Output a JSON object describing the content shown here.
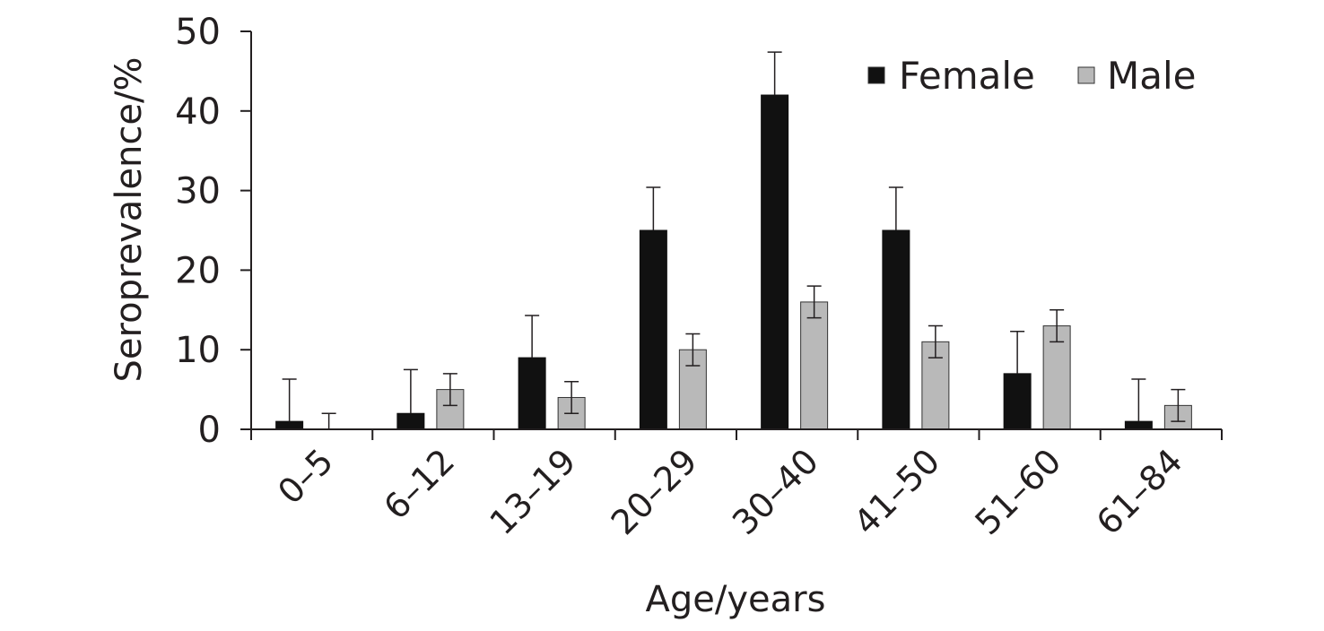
{
  "chart_data": {
    "type": "bar",
    "title": "",
    "xlabel": "Age/years",
    "ylabel": "Seroprevalence/%",
    "ylim": [
      0,
      50
    ],
    "yticks": [
      0,
      10,
      20,
      30,
      40,
      50
    ],
    "categories": [
      "0–5",
      "6–12",
      "13–19",
      "20–29",
      "30–40",
      "41–50",
      "51–60",
      "61–84"
    ],
    "series": [
      {
        "name": "Female",
        "color": "#111111",
        "values": [
          1,
          2,
          9,
          25,
          42,
          25,
          7,
          1
        ],
        "error_upper": [
          6.3,
          7.5,
          14.3,
          30.4,
          47.4,
          30.4,
          12.3,
          6.3
        ],
        "error_lower": [
          1,
          2,
          9,
          25,
          42,
          25,
          7,
          1
        ]
      },
      {
        "name": "Male",
        "color": "#b9b9b9",
        "values": [
          0,
          5,
          4,
          10,
          16,
          11,
          13,
          3
        ],
        "error_upper": [
          2,
          7,
          6,
          12,
          18,
          13,
          15,
          5
        ],
        "error_lower": [
          0,
          3,
          2,
          8,
          14,
          9,
          11,
          1
        ]
      }
    ],
    "legend_position": "top-right",
    "grid": false
  }
}
